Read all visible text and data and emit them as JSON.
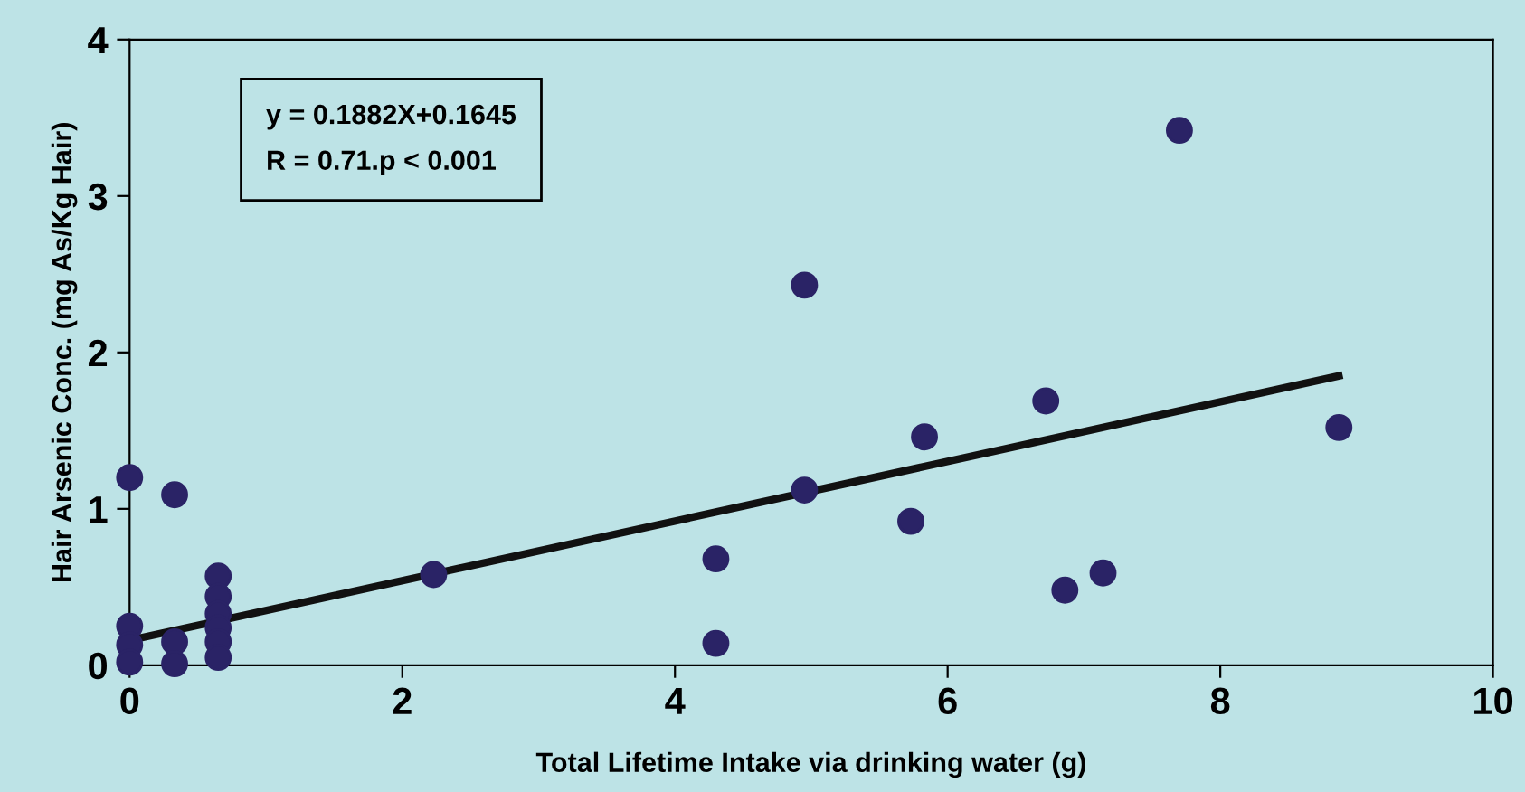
{
  "chart_data": {
    "type": "scatter",
    "xlabel": "Total Lifetime Intake via drinking water (g)",
    "ylabel": "Hair Arsenic Conc. (mg As/Kg Hair)",
    "annotations": [
      "y = 0.1882X+0.1645\nR = 0.71.p < 0.001"
    ],
    "xlim": [
      0,
      10
    ],
    "xticks": [
      0,
      2,
      4,
      6,
      8,
      10
    ],
    "ylim": [
      0,
      4
    ],
    "yticks": [
      0,
      1,
      2,
      3,
      4
    ],
    "series": [
      {
        "color": "#2a2366",
        "marker": "circle",
        "x": [
          0,
          0,
          0,
          0,
          0.33,
          0.33,
          0.33,
          0.65,
          0.65,
          0.65,
          0.65,
          0.65,
          0.65,
          2.23,
          4.3,
          4.3,
          4.95,
          4.95,
          5.73,
          5.83,
          6.72,
          6.86,
          7.14,
          7.7,
          8.87
        ],
        "values": [
          1.2,
          0.25,
          0.13,
          0.02,
          1.09,
          0.15,
          0.01,
          0.57,
          0.44,
          0.33,
          0.24,
          0.15,
          0.05,
          0.58,
          0.68,
          0.14,
          2.43,
          1.12,
          0.92,
          1.46,
          1.69,
          0.48,
          0.59,
          3.42,
          1.52
        ]
      },
      {
        "type": "line",
        "color": "#111111",
        "marker": "none",
        "line_style": "solid",
        "x": [
          0,
          8.87
        ],
        "values": [
          0.16,
          1.85
        ]
      }
    ]
  }
}
